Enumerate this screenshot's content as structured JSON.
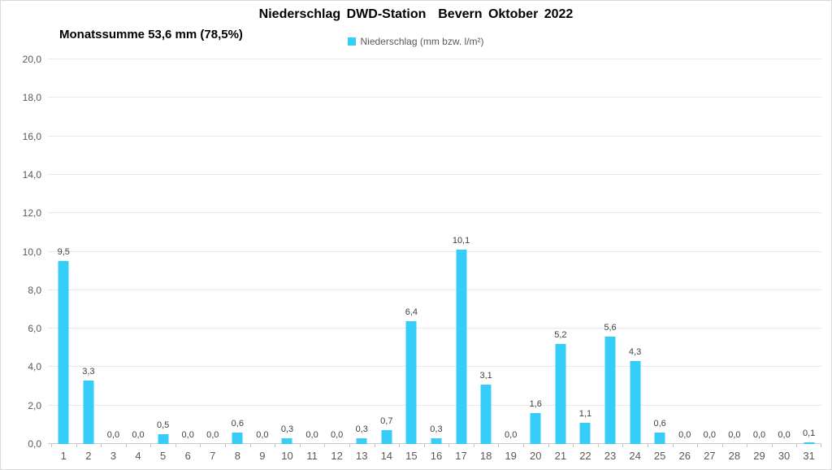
{
  "header": {
    "title": "Niederschlag DWD-Station  Bevern Oktober 2022",
    "subtitle": "Monatssumme 53,6 mm (78,5%)"
  },
  "legend": {
    "label": "Niederschlag (mm bzw. l/m²)",
    "swatch_color": "#36cdf8"
  },
  "colors": {
    "bar": "#36cdf8",
    "gridline": "#e9e9e9",
    "axis_line": "#c9c9c9",
    "value_label": "#404040",
    "tick_label": "#595959",
    "border": "#d9d9d9"
  },
  "chart_data": {
    "type": "bar",
    "title": "Niederschlag DWD-Station  Bevern Oktober 2022",
    "subtitle": "Monatssumme 53,6 mm (78,5%)",
    "legend_entries": [
      "Niederschlag (mm bzw. l/m²)"
    ],
    "legend_position": "top-center",
    "xlabel": "",
    "ylabel": "",
    "ylim": [
      0,
      20
    ],
    "ytick_step": 2,
    "ytick_labels": [
      "0,0",
      "2,0",
      "4,0",
      "6,0",
      "8,0",
      "10,0",
      "12,0",
      "14,0",
      "16,0",
      "18,0",
      "20,0"
    ],
    "grid": true,
    "categories": [
      "1",
      "2",
      "3",
      "4",
      "5",
      "6",
      "7",
      "8",
      "9",
      "10",
      "11",
      "12",
      "13",
      "14",
      "15",
      "16",
      "17",
      "18",
      "19",
      "20",
      "21",
      "22",
      "23",
      "24",
      "25",
      "26",
      "27",
      "28",
      "29",
      "30",
      "31"
    ],
    "values": [
      9.5,
      3.3,
      0.0,
      0.0,
      0.5,
      0.0,
      0.0,
      0.6,
      0.0,
      0.3,
      0.0,
      0.0,
      0.3,
      0.7,
      6.4,
      0.3,
      10.1,
      3.1,
      0.0,
      1.6,
      5.2,
      1.1,
      5.6,
      4.3,
      0.6,
      0.0,
      0.0,
      0.0,
      0.0,
      0.0,
      0.1
    ],
    "value_labels": [
      "9,5",
      "3,3",
      "0,0",
      "0,0",
      "0,5",
      "0,0",
      "0,0",
      "0,6",
      "0,0",
      "0,3",
      "0,0",
      "0,0",
      "0,3",
      "0,7",
      "6,4",
      "0,3",
      "10,1",
      "3,1",
      "0,0",
      "1,6",
      "5,2",
      "1,1",
      "5,6",
      "4,3",
      "0,6",
      "0,0",
      "0,0",
      "0,0",
      "0,0",
      "0,0",
      "0,1"
    ]
  }
}
